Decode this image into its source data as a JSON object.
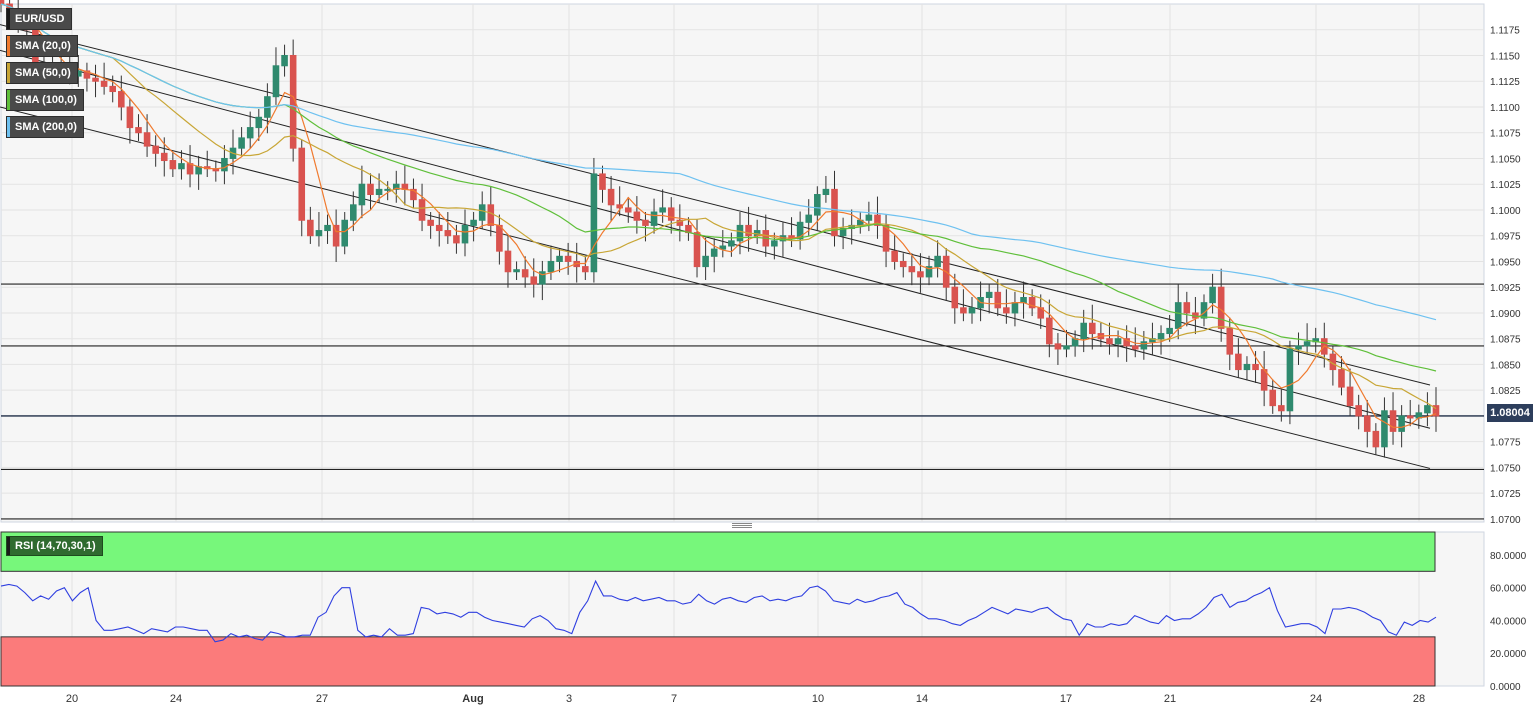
{
  "symbol": "EUR/USD",
  "indicators": [
    {
      "label": "SMA (20,0)",
      "color": "#f07a2e"
    },
    {
      "label": "SMA (50,0)",
      "color": "#c8a636"
    },
    {
      "label": "SMA (100,0)",
      "color": "#5fbf3a"
    },
    {
      "label": "SMA (200,0)",
      "color": "#6ec1f0"
    }
  ],
  "rsi_label": "RSI (14,70,30,1)",
  "last_price": "1.08004",
  "chart_data": [
    {
      "type": "candlestick",
      "xlabel": "",
      "ylabel": "",
      "x_ticks": [
        "20",
        "24",
        "27",
        "Aug",
        "3",
        "7",
        "10",
        "14",
        "17",
        "21",
        "24",
        "28"
      ],
      "y_ticks": [
        "1.1175",
        "1.1150",
        "1.1125",
        "1.1100",
        "1.1075",
        "1.1050",
        "1.1025",
        "1.1000",
        "1.0975",
        "1.0950",
        "1.0925",
        "1.0900",
        "1.0875",
        "1.0850",
        "1.0825",
        "1.0800",
        "1.0775",
        "1.0750",
        "1.0725",
        "1.0700"
      ],
      "ylim": [
        1.0697,
        1.12
      ],
      "grid": true,
      "horizontal_levels": [
        1.0928,
        1.0868,
        1.08,
        1.0748,
        1.07
      ],
      "channel_lines": [
        {
          "from": [
            0,
            1.118
          ],
          "to": [
            1430,
            1.083
          ]
        },
        {
          "from": [
            0,
            1.1155
          ],
          "to": [
            1430,
            1.0788
          ]
        },
        {
          "from": [
            0,
            1.11
          ],
          "to": [
            1430,
            1.0749
          ]
        }
      ],
      "candle_x_range": [
        1,
        1436
      ],
      "closes": [
        1.12,
        1.1195,
        1.1185,
        1.1175,
        1.114,
        1.1142,
        1.1138,
        1.114,
        1.113,
        1.1135,
        1.1128,
        1.1125,
        1.112,
        1.1115,
        1.11,
        1.108,
        1.1075,
        1.1062,
        1.1055,
        1.1048,
        1.104,
        1.1045,
        1.1035,
        1.1042,
        1.104,
        1.1038,
        1.105,
        1.106,
        1.107,
        1.108,
        1.109,
        1.111,
        1.114,
        1.115,
        1.106,
        1.099,
        1.0975,
        1.098,
        1.0985,
        1.0965,
        1.099,
        1.1005,
        1.1025,
        1.1015,
        1.102,
        1.102,
        1.1025,
        1.102,
        1.101,
        1.099,
        1.0985,
        1.098,
        1.0975,
        1.0968,
        1.0985,
        1.099,
        1.1005,
        1.0985,
        1.096,
        1.094,
        1.0942,
        1.0935,
        1.0928,
        1.094,
        1.095,
        1.0955,
        1.095,
        1.0945,
        1.094,
        1.1035,
        1.102,
        1.1005,
        1.1002,
        1.0998,
        1.099,
        1.0985,
        1.0998,
        1.1002,
        1.099,
        1.0985,
        1.0978,
        1.0945,
        1.0955,
        1.0962,
        1.0965,
        1.097,
        1.0985,
        1.0975,
        1.098,
        1.0965,
        1.097,
        1.0975,
        1.0972,
        1.0988,
        1.0995,
        1.1015,
        1.102,
        1.0975,
        1.0982,
        1.0985,
        1.099,
        1.0995,
        1.0985,
        1.096,
        1.095,
        1.0945,
        1.094,
        1.0935,
        1.0945,
        1.0955,
        1.0925,
        1.0905,
        1.09,
        1.0905,
        1.0915,
        1.092,
        1.0905,
        1.09,
        1.091,
        1.0915,
        1.0905,
        1.0895,
        1.087,
        1.0865,
        1.0868,
        1.0875,
        1.089,
        1.088,
        1.0875,
        1.087,
        1.0875,
        1.0868,
        1.0865,
        1.0872,
        1.0875,
        1.088,
        1.0885,
        1.091,
        1.09,
        1.0895,
        1.091,
        1.0925,
        1.0885,
        1.086,
        1.0845,
        1.085,
        1.0845,
        1.0825,
        1.081,
        1.0805,
        1.0865,
        1.0868,
        1.0872,
        1.0875,
        1.086,
        1.0845,
        1.0828,
        1.081,
        1.08,
        1.0785,
        1.077,
        1.0805,
        1.0785,
        1.08,
        1.0798,
        1.0803,
        1.081,
        1.08
      ]
    },
    {
      "type": "line",
      "title": "",
      "x_ticks": [
        "20",
        "24",
        "27",
        "Aug",
        "3",
        "7",
        "10",
        "14",
        "17",
        "21",
        "24",
        "28"
      ],
      "y_ticks": [
        "80.0000",
        "60.0000",
        "40.0000",
        "20.0000",
        "0.0000"
      ],
      "ylim": [
        0,
        94
      ],
      "overbought": 70,
      "oversold": 30,
      "values": [
        61,
        62,
        61,
        57,
        52,
        55,
        53,
        58,
        60,
        52,
        57,
        60,
        40,
        34,
        34,
        35,
        36,
        34,
        32,
        35,
        34,
        33,
        36,
        36,
        35,
        34,
        34,
        27,
        28,
        32,
        30,
        31,
        29,
        28,
        33,
        32,
        30,
        30,
        31,
        31,
        42,
        45,
        55,
        60,
        60,
        34,
        30,
        31,
        30,
        35,
        31,
        31,
        32,
        48,
        47,
        44,
        45,
        44,
        42,
        45,
        45,
        42,
        40,
        39,
        38,
        37,
        36,
        41,
        43,
        40,
        35,
        34,
        32,
        45,
        52,
        64,
        55,
        55,
        53,
        52,
        54,
        52,
        53,
        54,
        52,
        52,
        50,
        51,
        56,
        52,
        50,
        53,
        54,
        52,
        51,
        54,
        55,
        52,
        53,
        52,
        54,
        55,
        60,
        61,
        58,
        52,
        51,
        50,
        53,
        51,
        52,
        54,
        55,
        57,
        50,
        48,
        44,
        41,
        41,
        40,
        38,
        37,
        40,
        42,
        45,
        48,
        46,
        44,
        47,
        46,
        45,
        47,
        48,
        44,
        41,
        40,
        31,
        38,
        36,
        36,
        38,
        37,
        38,
        43,
        41,
        39,
        38,
        43,
        40,
        41,
        41,
        44,
        48,
        54,
        56,
        48,
        51,
        52,
        55,
        57,
        60,
        46,
        36,
        37,
        38,
        38,
        36,
        32,
        47,
        47,
        48,
        47,
        45,
        42,
        40,
        33,
        31,
        39,
        37,
        40,
        39,
        42
      ]
    }
  ]
}
